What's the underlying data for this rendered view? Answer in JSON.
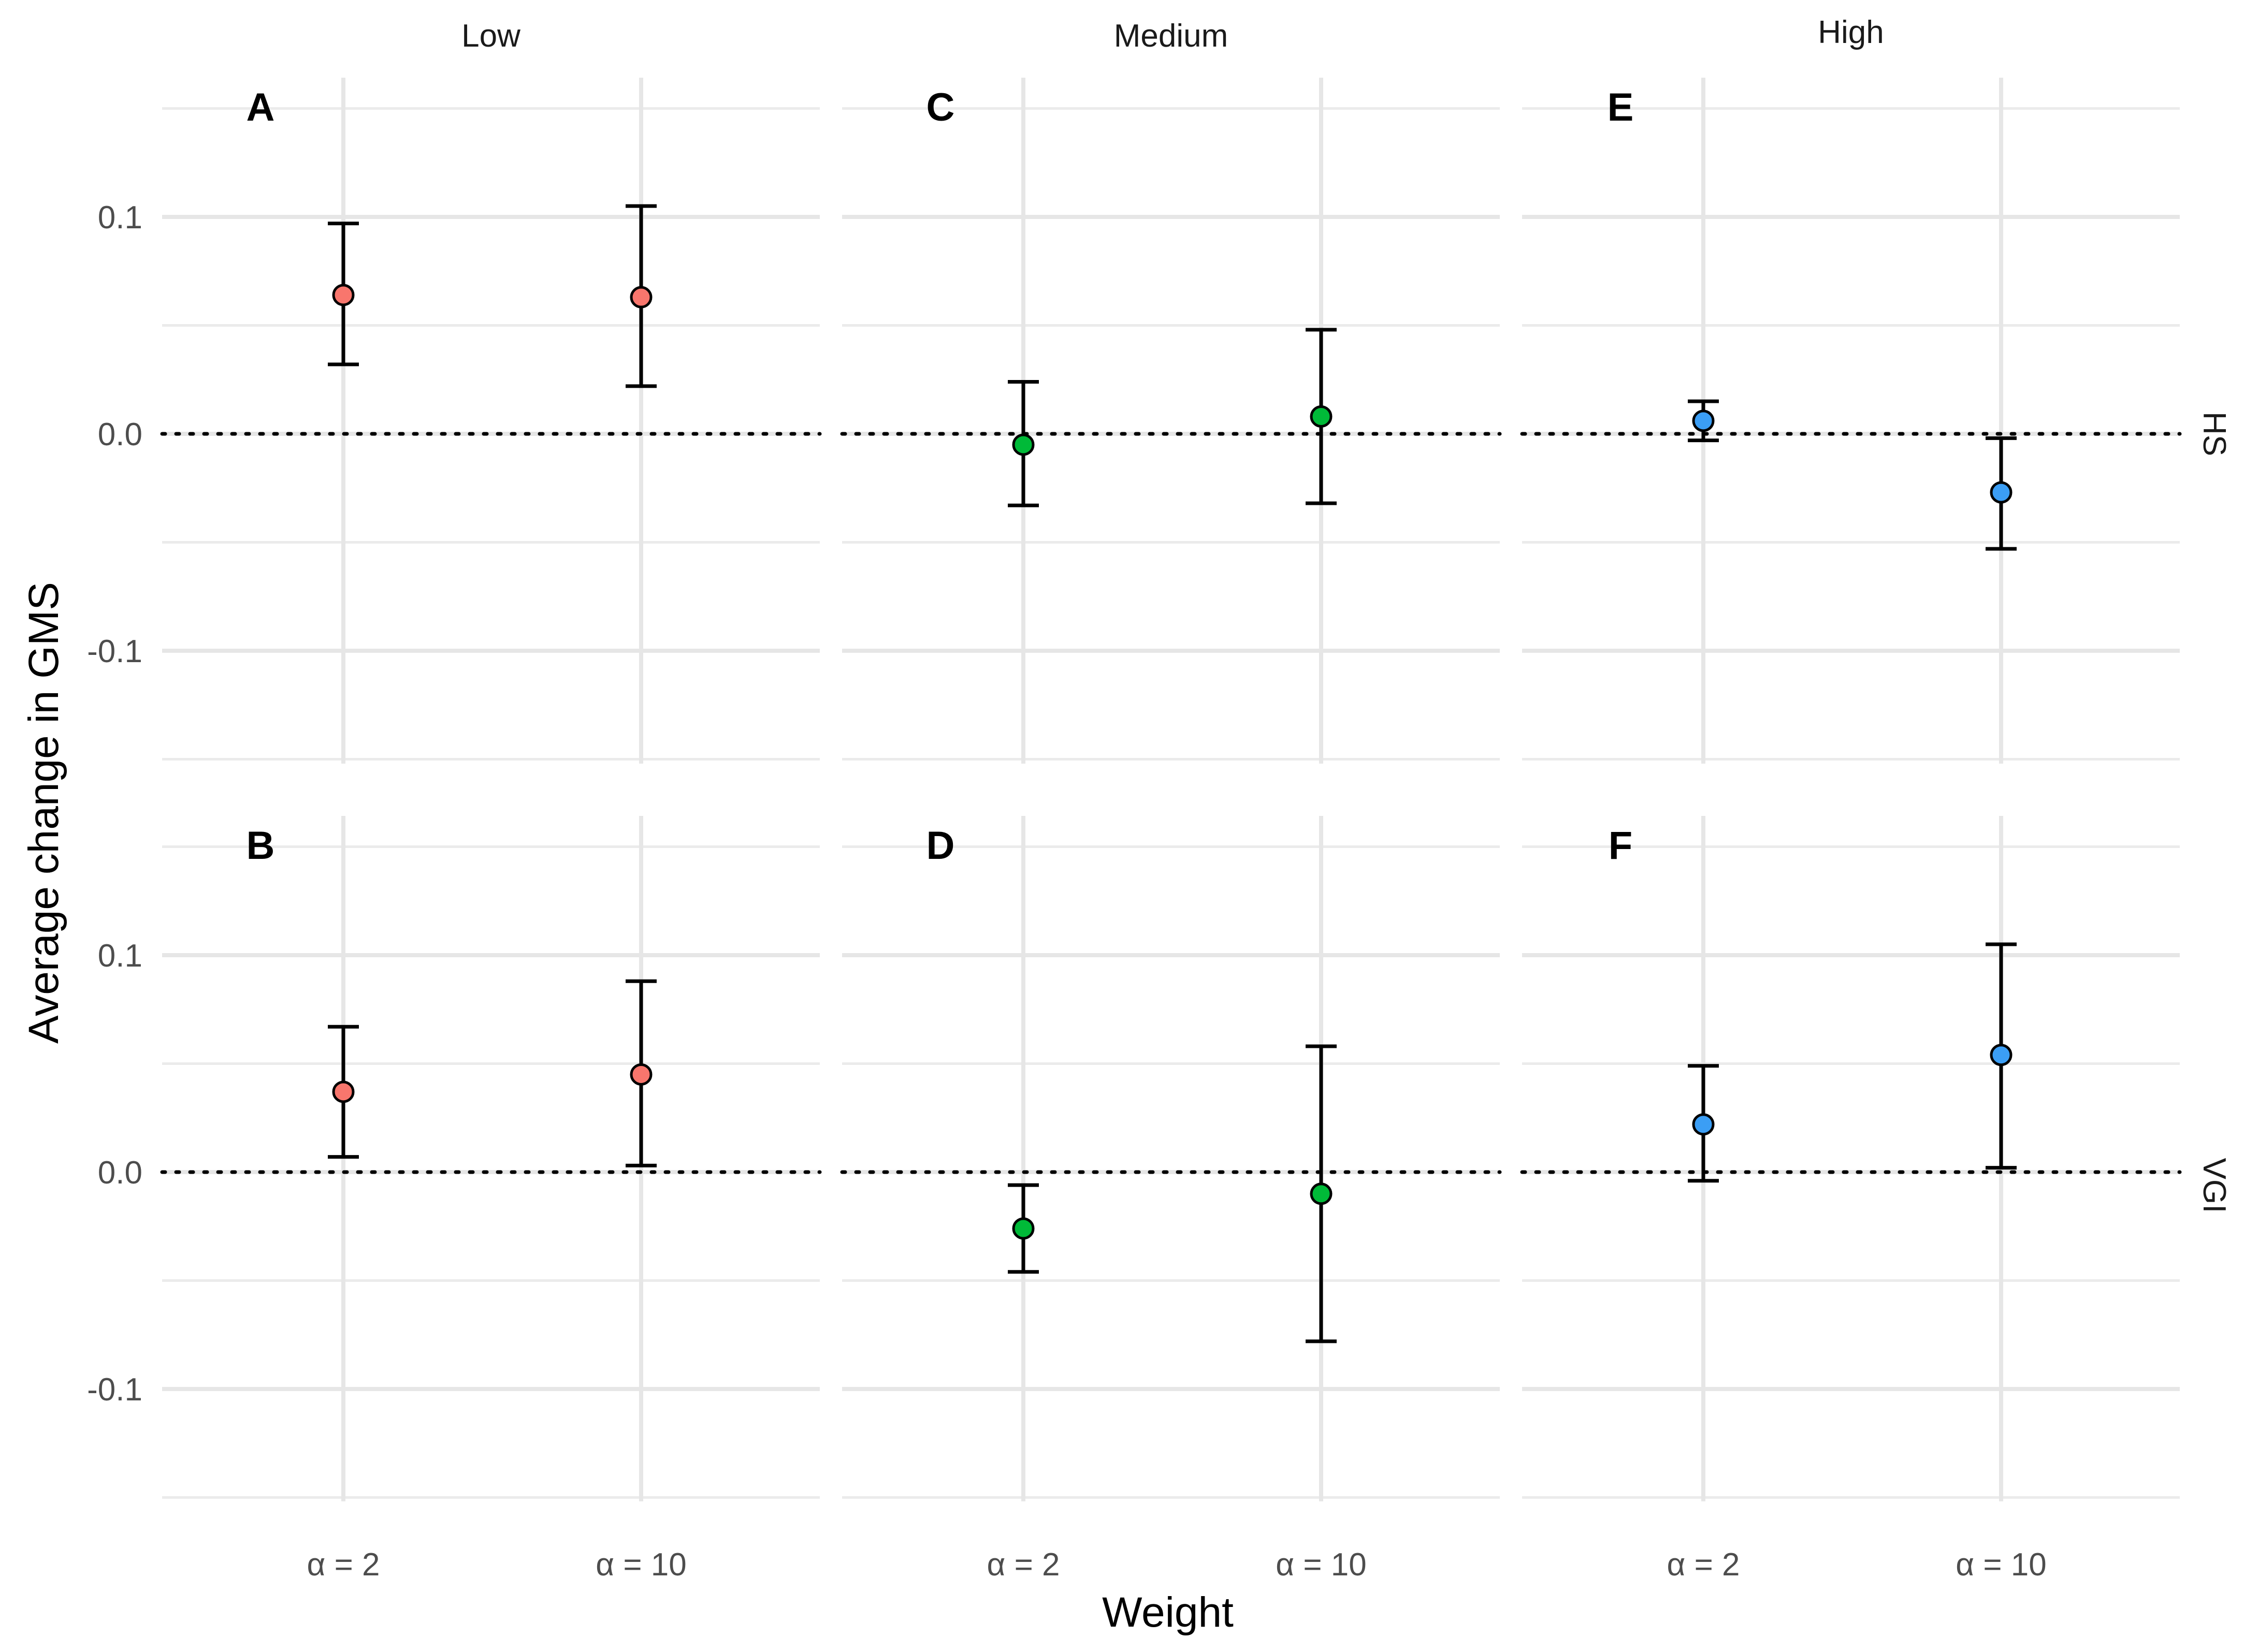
{
  "chart_data": {
    "type": "scatter",
    "subtype": "point-with-errorbars",
    "xlabel": "Weight",
    "ylabel": "Average change in GMS",
    "categories": [
      "α = 2",
      "α = 10"
    ],
    "ylim": [
      -0.165,
      0.165
    ],
    "yticks": [
      0.1,
      0.0,
      -0.1
    ],
    "ytick_labels": [
      "0.1",
      "0.0",
      "-0.1"
    ],
    "reference_line": 0.0,
    "columns": [
      "Low",
      "Medium",
      "High"
    ],
    "rows": [
      "HS",
      "VGI"
    ],
    "colors": {
      "Low": "#f8766d",
      "Medium": "#00ba38",
      "High": "#3b9ef5"
    },
    "panels": [
      {
        "tag": "A",
        "column": "Low",
        "row": "HS",
        "points": [
          {
            "category": "α = 2",
            "value": 0.064,
            "lower": 0.032,
            "upper": 0.097
          },
          {
            "category": "α = 10",
            "value": 0.063,
            "lower": 0.022,
            "upper": 0.105
          }
        ]
      },
      {
        "tag": "C",
        "column": "Medium",
        "row": "HS",
        "points": [
          {
            "category": "α = 2",
            "value": -0.005,
            "lower": -0.033,
            "upper": 0.024
          },
          {
            "category": "α = 10",
            "value": 0.008,
            "lower": -0.032,
            "upper": 0.048
          }
        ]
      },
      {
        "tag": "E",
        "column": "High",
        "row": "HS",
        "points": [
          {
            "category": "α = 2",
            "value": 0.006,
            "lower": -0.003,
            "upper": 0.015
          },
          {
            "category": "α = 10",
            "value": -0.027,
            "lower": -0.053,
            "upper": -0.002
          }
        ]
      },
      {
        "tag": "B",
        "column": "Low",
        "row": "VGI",
        "points": [
          {
            "category": "α = 2",
            "value": 0.037,
            "lower": 0.007,
            "upper": 0.067
          },
          {
            "category": "α = 10",
            "value": 0.045,
            "lower": 0.003,
            "upper": 0.088
          }
        ]
      },
      {
        "tag": "D",
        "column": "Medium",
        "row": "VGI",
        "points": [
          {
            "category": "α = 2",
            "value": -0.026,
            "lower": -0.046,
            "upper": -0.006
          },
          {
            "category": "α = 10",
            "value": -0.01,
            "lower": -0.078,
            "upper": 0.058
          }
        ]
      },
      {
        "tag": "F",
        "column": "High",
        "row": "VGI",
        "points": [
          {
            "category": "α = 2",
            "value": 0.022,
            "lower": -0.004,
            "upper": 0.049
          },
          {
            "category": "α = 10",
            "value": 0.054,
            "lower": 0.002,
            "upper": 0.105
          }
        ]
      }
    ]
  }
}
